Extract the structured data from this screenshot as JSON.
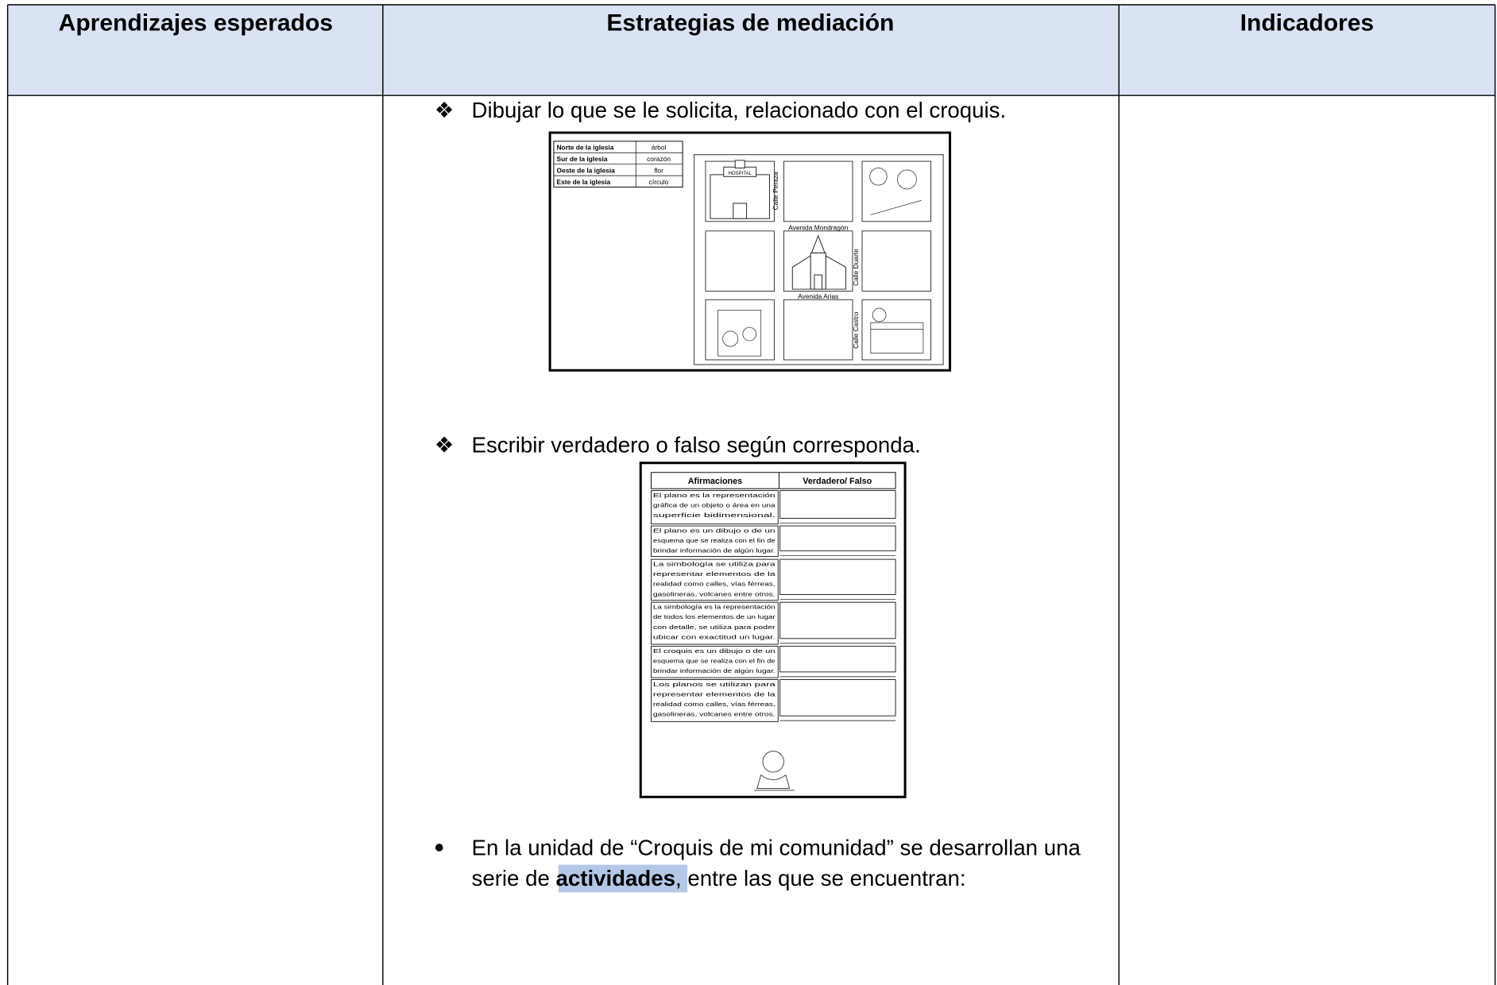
{
  "header": {
    "columns": [
      "Aprendizajes esperados",
      "Estrategias de mediación",
      "Indicadores"
    ]
  },
  "items": [
    {
      "text": "Dibujar lo que se le solicita, relacionado con el croquis."
    },
    {
      "text": "Escribir verdadero o falso según corresponda."
    }
  ],
  "map_image": {
    "table": [
      [
        "Norte de la iglesia",
        "árbol"
      ],
      [
        "Sur de la iglesia",
        "corazón"
      ],
      [
        "Oeste de la iglesia",
        "flor"
      ],
      [
        "Este de la iglesia",
        "círculo"
      ]
    ],
    "hospital_sign": "HOSPITAL",
    "streets": [
      "Calle Peraza",
      "Avenida Mondragón",
      "Calle Duarte",
      "Avenida Arias",
      "Calle Castro"
    ]
  },
  "quiz_image": {
    "headers": [
      "Afirmaciones",
      "Verdadero/ Falso"
    ],
    "statements": [
      [
        "El plano es la representación",
        "gráfica de un objeto o área en una",
        "superficie bidimensional."
      ],
      [
        "El plano es un dibujo o de un",
        "esquema que se realiza con el fin de",
        "brindar información de algún lugar."
      ],
      [
        "La simbología se utiliza para",
        "representar elementos de la",
        "realidad como calles, vías férreas,",
        "gasolineras, volcanes entre otros."
      ],
      [
        "La simbología es la representación",
        "de todos los elementos de un lugar",
        "con detalle, se utiliza para poder",
        "ubicar con exactitud un lugar."
      ],
      [
        "El croquis es un dibujo o de un",
        "esquema que se realiza con el fin de",
        "brindar información de algún lugar."
      ],
      [
        "Los planos se utilizan para",
        "representar elementos de la",
        "realidad como calles, vías férreas,",
        "gasolineras, volcanes entre otros."
      ]
    ]
  },
  "final_item": {
    "line1": "En la unidad de “Croquis de mi comunidad” se desarrollan una",
    "line2_start": "serie de ",
    "line2_bold": "actividades",
    "line2_end": ", entre las que se encuentran:"
  }
}
